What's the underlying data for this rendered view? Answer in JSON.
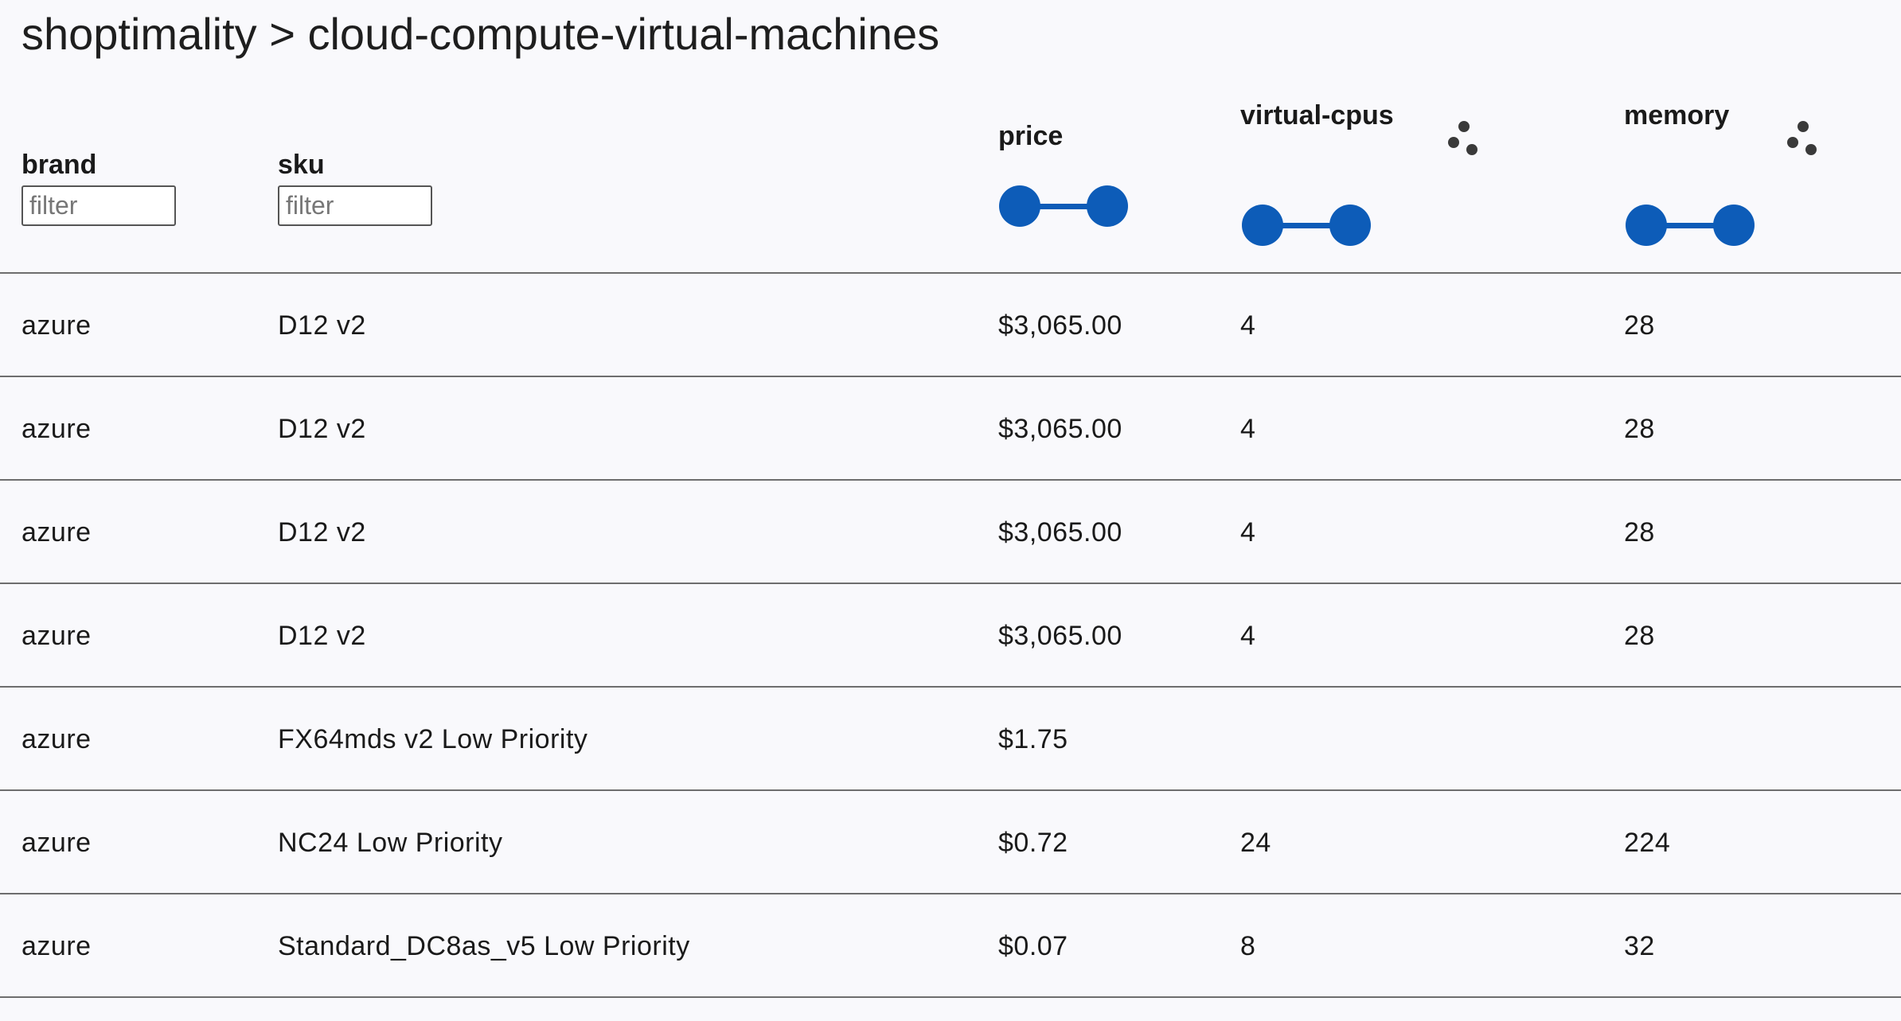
{
  "breadcrumb": {
    "text": "shoptimality > cloud-compute-virtual-machines"
  },
  "columns": {
    "brand": {
      "label": "brand",
      "filter_placeholder": "filter",
      "filter_value": ""
    },
    "sku": {
      "label": "sku",
      "filter_placeholder": "filter",
      "filter_value": ""
    },
    "price": {
      "label": "price",
      "control": "range-slider"
    },
    "virtual_cpus": {
      "label": "virtual-cpus",
      "control": "range-slider",
      "chart_icon": "scatter-plot-icon"
    },
    "memory": {
      "label": "memory",
      "control": "range-slider",
      "chart_icon": "scatter-plot-icon"
    }
  },
  "rows": [
    {
      "brand": "azure",
      "sku": "D12 v2",
      "price": "$3,065.00",
      "virtual_cpus": "4",
      "memory": "28"
    },
    {
      "brand": "azure",
      "sku": "D12 v2",
      "price": "$3,065.00",
      "virtual_cpus": "4",
      "memory": "28"
    },
    {
      "brand": "azure",
      "sku": "D12 v2",
      "price": "$3,065.00",
      "virtual_cpus": "4",
      "memory": "28"
    },
    {
      "brand": "azure",
      "sku": "D12 v2",
      "price": "$3,065.00",
      "virtual_cpus": "4",
      "memory": "28"
    },
    {
      "brand": "azure",
      "sku": "FX64mds v2 Low Priority",
      "price": "$1.75",
      "virtual_cpus": "",
      "memory": ""
    },
    {
      "brand": "azure",
      "sku": "NC24 Low Priority",
      "price": "$0.72",
      "virtual_cpus": "24",
      "memory": "224"
    },
    {
      "brand": "azure",
      "sku": "Standard_DC8as_v5 Low Priority",
      "price": "$0.07",
      "virtual_cpus": "8",
      "memory": "32"
    }
  ],
  "colors": {
    "accent": "#0d5cb8",
    "divider": "#6e6e6e",
    "background": "#f9f9fc",
    "icon": "#3a3a3a"
  }
}
